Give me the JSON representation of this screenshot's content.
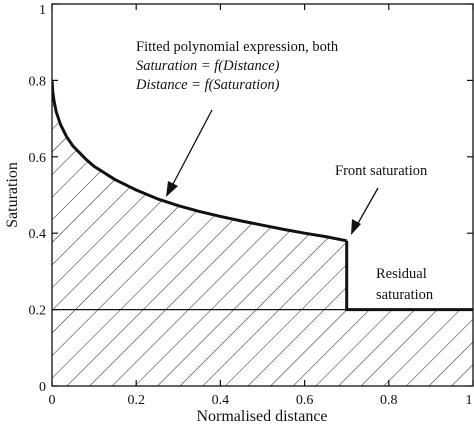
{
  "chart_data": {
    "type": "area",
    "xlabel": "Normalised distance",
    "ylabel": "Saturation",
    "xlim": [
      0,
      1
    ],
    "ylim": [
      0,
      1
    ],
    "x_ticks": [
      "0",
      "0.2",
      "0.4",
      "0.6",
      "0.8",
      "1"
    ],
    "y_ticks": [
      "0",
      "0.2",
      "0.4",
      "0.6",
      "0.8",
      "1"
    ],
    "grid": false,
    "legend": "none",
    "fill": "diagonal hatching",
    "series": [
      {
        "x": [
          0,
          0.002,
          0.005,
          0.01,
          0.02,
          0.035,
          0.05,
          0.08,
          0.1,
          0.15,
          0.2,
          0.25,
          0.3,
          0.35,
          0.4,
          0.45,
          0.5,
          0.55,
          0.6,
          0.65,
          0.7
        ],
        "values": [
          0.8,
          0.77,
          0.745,
          0.718,
          0.685,
          0.652,
          0.628,
          0.594,
          0.575,
          0.54,
          0.513,
          0.49,
          0.472,
          0.457,
          0.444,
          0.432,
          0.421,
          0.41,
          0.4,
          0.391,
          0.38
        ]
      },
      {
        "x": [
          0.7,
          0.7,
          1.0
        ],
        "values": [
          0.38,
          0.2,
          0.2
        ]
      }
    ],
    "reference_line": {
      "y": 0.2
    },
    "annotations": {
      "fit_line1": "Fitted polynomial expression, both",
      "fit_line2": "Saturation = f(Distance)",
      "fit_line3": "Distance = f(Saturation)",
      "front": "Front saturation",
      "residual_line1": "Residual",
      "residual_line2": "saturation"
    },
    "colors": {
      "line": "#111111",
      "hatch": "#222222",
      "background": "#ffffff"
    }
  }
}
